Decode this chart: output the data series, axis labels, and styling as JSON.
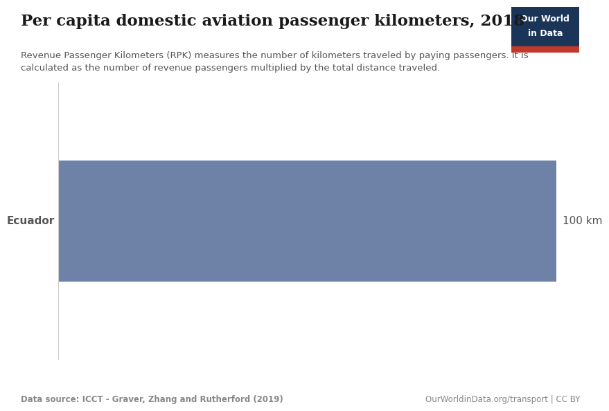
{
  "title": "Per capita domestic aviation passenger kilometers, 2018",
  "subtitle": "Revenue Passenger Kilometers (RPK) measures the number of kilometers traveled by paying passengers. It is\ncalculated as the number of revenue passengers multiplied by the total distance traveled.",
  "country": "Ecuador",
  "value_label": "100 km",
  "bar_color": "#6e82a8",
  "data_source": "Data source: ICCT - Graver, Zhang and Rutherford (2019)",
  "url": "OurWorldinData.org/transport | CC BY",
  "logo_text_line1": "Our World",
  "logo_text_line2": "in Data",
  "logo_bg_color": "#1a3558",
  "logo_red_color": "#c0392b",
  "background_color": "#ffffff",
  "title_color": "#1a1a1a",
  "subtitle_color": "#555555",
  "label_color": "#555555",
  "footer_color": "#888888",
  "axis_line_color": "#cccccc"
}
